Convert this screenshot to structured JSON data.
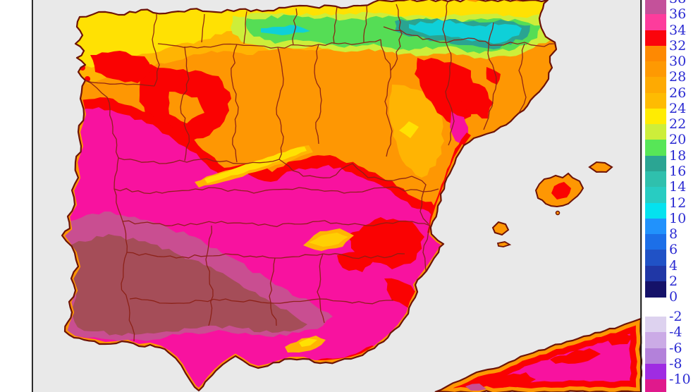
{
  "legend": {
    "label_color": "#2b2bd2",
    "above_zero": {
      "labels": [
        "38",
        "36",
        "34",
        "32",
        "30",
        "28",
        "26",
        "24",
        "22",
        "20",
        "18",
        "16",
        "14",
        "12",
        "10",
        "8",
        "6",
        "4",
        "2",
        "0"
      ],
      "band_colors": [
        "#c4519a",
        "#fd3c9c",
        "#fb040c",
        "#fe8902",
        "#fe9902",
        "#feaa02",
        "#febb02",
        "#ffec02",
        "#cdee3a",
        "#57e657",
        "#2ba593",
        "#2fc0ad",
        "#28ccc2",
        "#04e2ef",
        "#2192fc",
        "#1c6fe8",
        "#2052c6",
        "#2037a6",
        "#151269"
      ]
    },
    "below_zero": {
      "labels": [
        "-2",
        "-4",
        "-6",
        "-8",
        "-10"
      ],
      "band_colors": [
        "#ddd2ef",
        "#cbabe6",
        "#b381da",
        "#9f2ce2",
        "#e0198c"
      ]
    }
  },
  "map": {
    "sea_color": "#e9e9e9",
    "frame_color": "#161616",
    "coastline_color": "#6d1306",
    "border_color": "#8b2015",
    "palette": {
      "base_orange": "#fe9703",
      "deep_orange": "#fe8902",
      "amber": "#ffb403",
      "yellow": "#ffe103",
      "warm_yellow": "#ffcf03",
      "green_yellow": "#cdee3a",
      "green": "#55dd55",
      "teal": "#2aa491",
      "cyan": "#0fd0d8",
      "red": "#fa0202",
      "magenta": "#f8129f",
      "crimson": "#c94e91",
      "maroon": "#a54d58"
    }
  }
}
